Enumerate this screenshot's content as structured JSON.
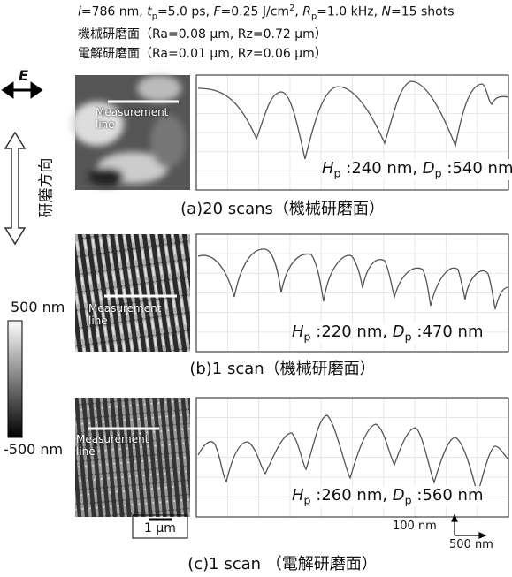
{
  "header": {
    "line1": [
      {
        "text": "l",
        "style": "italic"
      },
      {
        "text": "=786 nm, ",
        "style": "normal"
      },
      {
        "text": "t",
        "style": "italic"
      },
      {
        "text": "p",
        "style": "sub"
      },
      {
        "text": "=5.0 ps, ",
        "style": "normal"
      },
      {
        "text": "F",
        "style": "italic"
      },
      {
        "text": "=0.25 J/cm",
        "style": "normal"
      },
      {
        "text": "2",
        "style": "sup"
      },
      {
        "text": ", ",
        "style": "normal"
      },
      {
        "text": "R",
        "style": "italic"
      },
      {
        "text": "p",
        "style": "sub"
      },
      {
        "text": "=1.0 kHz, ",
        "style": "normal"
      },
      {
        "text": "N",
        "style": "italic"
      },
      {
        "text": "=15 shots",
        "style": "normal"
      }
    ],
    "line2": "機械研磨面（Ra=0.08 μm, Rz=0.72 μm）",
    "line3": "電解研磨面（Ra=0.01 μm, Rz=0.06 μm）"
  },
  "legend": {
    "field_label": "E",
    "direction_label": "研磨方向",
    "colorbar_max": "500 nm",
    "colorbar_min": "-500 nm"
  },
  "panels": [
    {
      "measurement_label": {
        "line1": "Measurement",
        "line2": "line"
      },
      "annotation": [
        {
          "text": "H",
          "style": "italic"
        },
        {
          "text": "p",
          "style": "sub"
        },
        {
          "text": " :240 nm, ",
          "style": "normal"
        },
        {
          "text": "D",
          "style": "italic"
        },
        {
          "text": "p",
          "style": "sub"
        },
        {
          "text": " :540 nm",
          "style": "normal"
        }
      ],
      "caption": "(a)20 scans（機械研磨面）"
    },
    {
      "measurement_label": {
        "line1": "Measurement",
        "line2": "line"
      },
      "annotation": [
        {
          "text": "H",
          "style": "italic"
        },
        {
          "text": "p",
          "style": "sub"
        },
        {
          "text": " :220 nm, ",
          "style": "normal"
        },
        {
          "text": "D",
          "style": "italic"
        },
        {
          "text": "p",
          "style": "sub"
        },
        {
          "text": " :470 nm",
          "style": "normal"
        }
      ],
      "caption": "(b)1 scan（機械研磨面）"
    },
    {
      "measurement_label": {
        "line1": "Measurement",
        "line2": "line"
      },
      "annotation": [
        {
          "text": "H",
          "style": "italic"
        },
        {
          "text": "p",
          "style": "sub"
        },
        {
          "text": " :260 nm, ",
          "style": "normal"
        },
        {
          "text": "D",
          "style": "italic"
        },
        {
          "text": "p",
          "style": "sub"
        },
        {
          "text": " :560 nm",
          "style": "normal"
        }
      ],
      "caption": "(c)1 scan （電解研磨面）"
    }
  ],
  "scale": {
    "image_bar": "1 μm",
    "profile_vertical": "100 nm",
    "profile_horizontal": "500 nm"
  }
}
